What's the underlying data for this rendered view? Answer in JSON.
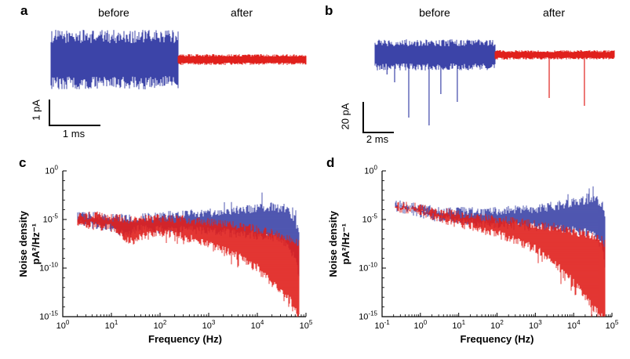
{
  "colors": {
    "before": "#3c44a8",
    "after": "#e0201c",
    "axis": "#000000"
  },
  "panels": {
    "a": {
      "letter": "a",
      "before": "before",
      "after": "after",
      "scale_v": "1 pA",
      "scale_h": "1 ms"
    },
    "b": {
      "letter": "b",
      "before": "before",
      "after": "after",
      "scale_v": "20 pA",
      "scale_h": "2 ms"
    },
    "c": {
      "letter": "c",
      "xlabel": "Frequency (Hz)",
      "ylabel_line1": "Noise density",
      "ylabel_line2": "pA²/Hz⁻¹"
    },
    "d": {
      "letter": "d",
      "xlabel": "Frequency (Hz)",
      "ylabel_line1": "Noise density",
      "ylabel_line2": "pA²/Hz⁻¹"
    }
  },
  "chart_data": [
    {
      "panel": "a",
      "type": "trace",
      "title": "Current noise trace before and after",
      "units": "pA",
      "center": 48,
      "scalebar": {
        "vertical": "1 pA",
        "horizontal": "1 ms"
      },
      "segments": [
        {
          "name": "before",
          "color": "before",
          "x0": 0.01,
          "x1": 0.5,
          "amp": 38,
          "amplitude_pp_pA": 2.5,
          "spikes": []
        },
        {
          "name": "after",
          "color": "after",
          "x0": 0.5,
          "x1": 0.995,
          "amp": 7,
          "amplitude_pp_pA": 0.5,
          "spikes": []
        }
      ]
    },
    {
      "panel": "b",
      "type": "trace",
      "title": "Current trace with events before and after",
      "units": "pA",
      "center": 38,
      "scalebar": {
        "vertical": "20 pA",
        "horizontal": "2 ms"
      },
      "segments": [
        {
          "name": "before",
          "color": "before",
          "x0": 0.0,
          "x1": 0.5,
          "amp": 20,
          "amplitude_pp_pA": 20,
          "spikes": [
            {
              "x": 0.05,
              "d": 25
            },
            {
              "x": 0.082,
              "d": 35
            },
            {
              "x": 0.141,
              "d": 80
            },
            {
              "x": 0.226,
              "d": 90
            },
            {
              "x": 0.275,
              "d": 50
            },
            {
              "x": 0.344,
              "d": 60
            }
          ]
        },
        {
          "name": "after",
          "color": "after",
          "x0": 0.5,
          "x1": 1.0,
          "amp": 6,
          "amplitude_pp_pA": 5,
          "spikes": [
            {
              "x": 0.728,
              "d": 55
            },
            {
              "x": 0.875,
              "d": 65
            }
          ]
        }
      ]
    },
    {
      "panel": "c",
      "type": "spectrum",
      "xlabel": "Frequency (Hz)",
      "ylabel": "Noise density pA²/Hz⁻¹",
      "xlim_exp": [
        0,
        5
      ],
      "ylim_exp": [
        -15,
        0
      ],
      "xticks_exp": [
        0,
        1,
        2,
        3,
        4,
        5
      ],
      "yticks_exp": [
        0,
        -5,
        -10,
        -15
      ],
      "series": [
        {
          "name": "before",
          "color": "before",
          "envelope": [
            [
              0.3,
              -4.7,
              -5.4
            ],
            [
              0.7,
              -4.6,
              -5.7
            ],
            [
              1.0,
              -4.8,
              -5.9
            ],
            [
              1.35,
              -4.9,
              -6.6
            ],
            [
              1.5,
              -4.9,
              -6.0
            ],
            [
              2.0,
              -4.6,
              -6.0
            ],
            [
              3.0,
              -4.3,
              -6.2
            ],
            [
              3.7,
              -4.0,
              -6.5
            ],
            [
              4.3,
              -3.7,
              -6.8
            ],
            [
              4.6,
              -4.0,
              -7.5
            ],
            [
              4.78,
              -5.0,
              -9.0
            ],
            [
              4.85,
              -6.5,
              -10.5
            ]
          ]
        },
        {
          "name": "after",
          "color": "after",
          "envelope": [
            [
              0.3,
              -4.7,
              -5.4
            ],
            [
              0.7,
              -4.6,
              -5.7
            ],
            [
              1.0,
              -4.8,
              -5.9
            ],
            [
              1.35,
              -5.0,
              -7.3
            ],
            [
              2.0,
              -4.9,
              -6.3
            ],
            [
              2.5,
              -5.0,
              -6.8
            ],
            [
              3.0,
              -5.3,
              -7.5
            ],
            [
              3.5,
              -5.6,
              -8.5
            ],
            [
              4.0,
              -6.0,
              -10.0
            ],
            [
              4.4,
              -6.5,
              -12.0
            ],
            [
              4.7,
              -7.0,
              -13.5
            ],
            [
              4.85,
              -7.5,
              -15.0
            ]
          ]
        }
      ]
    },
    {
      "panel": "d",
      "type": "spectrum",
      "xlabel": "Frequency (Hz)",
      "ylabel": "Noise density pA²/Hz⁻¹",
      "xlim_exp": [
        -1,
        5
      ],
      "ylim_exp": [
        -15,
        0
      ],
      "xticks_exp": [
        -1,
        0,
        1,
        2,
        3,
        4,
        5
      ],
      "yticks_exp": [
        0,
        -5,
        -10,
        -15
      ],
      "series": [
        {
          "name": "before",
          "color": "before",
          "envelope": [
            [
              -0.65,
              -3.4,
              -3.8
            ],
            [
              -0.3,
              -3.6,
              -4.1
            ],
            [
              0,
              -3.8,
              -4.4
            ],
            [
              0.5,
              -4.1,
              -4.9
            ],
            [
              1.0,
              -4.1,
              -5.2
            ],
            [
              1.5,
              -4.2,
              -5.4
            ],
            [
              2.0,
              -4.1,
              -5.5
            ],
            [
              3.0,
              -3.9,
              -5.8
            ],
            [
              3.7,
              -3.5,
              -6.0
            ],
            [
              4.3,
              -3.0,
              -6.3
            ],
            [
              4.6,
              -2.9,
              -6.8
            ],
            [
              4.75,
              -3.5,
              -8.0
            ],
            [
              4.82,
              -5.0,
              -10.0
            ]
          ]
        },
        {
          "name": "after",
          "color": "after",
          "envelope": [
            [
              -0.65,
              -3.4,
              -3.8
            ],
            [
              -0.3,
              -3.6,
              -4.1
            ],
            [
              0,
              -3.8,
              -4.4
            ],
            [
              0.5,
              -4.2,
              -5.0
            ],
            [
              1.0,
              -4.4,
              -5.4
            ],
            [
              1.5,
              -4.7,
              -5.9
            ],
            [
              2.0,
              -5.0,
              -6.5
            ],
            [
              2.5,
              -5.2,
              -7.2
            ],
            [
              3.0,
              -5.5,
              -8.0
            ],
            [
              3.5,
              -5.8,
              -9.5
            ],
            [
              4.0,
              -6.2,
              -11.5
            ],
            [
              4.4,
              -6.6,
              -13.5
            ],
            [
              4.7,
              -7.0,
              -15.0
            ],
            [
              4.82,
              -7.5,
              -15.0
            ]
          ]
        }
      ]
    }
  ]
}
